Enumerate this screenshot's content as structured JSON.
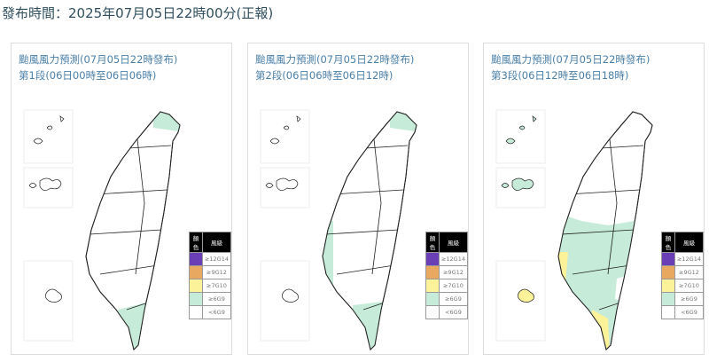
{
  "publish_time": "發布時間：2025年07月05日22時00分(正報)",
  "panels": [
    {
      "title": "颱風風力預測(07月05日22時發布)",
      "period": "第1段(06日00時至06日06時)"
    },
    {
      "title": "颱風風力預測(07月05日22時發布)",
      "period": "第2段(06日06時至06日12時)"
    },
    {
      "title": "颱風風力預測(07月05日22時發布)",
      "period": "第3段(06日12時至06日18時)"
    }
  ],
  "legend": {
    "color_header": "顏色",
    "level_header": "風級",
    "items": [
      {
        "label": "≥12G14",
        "color": "#6a3fb5"
      },
      {
        "label": "≥9G12",
        "color": "#e8a860"
      },
      {
        "label": "≥7G10",
        "color": "#fbf29a"
      },
      {
        "label": "≥6G9",
        "color": "#c6ecd9"
      },
      {
        "label": "<6G9",
        "color": "#ffffff"
      }
    ]
  }
}
